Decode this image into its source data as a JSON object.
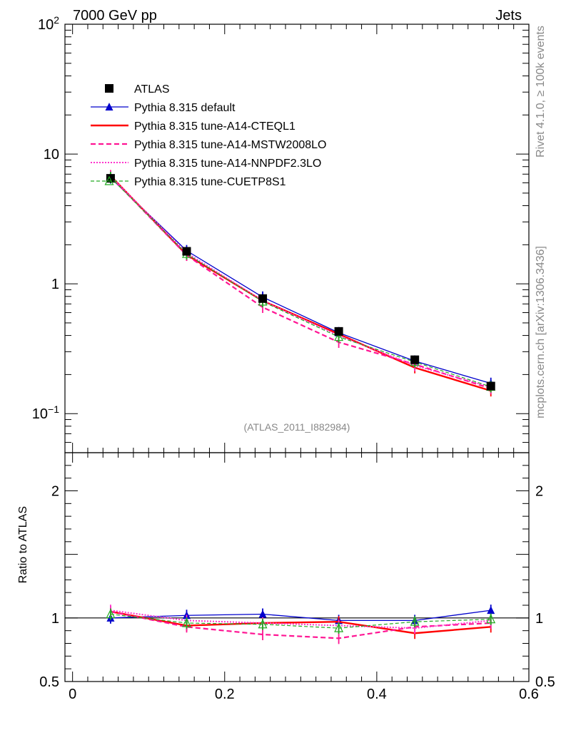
{
  "header": {
    "left": "7000 GeV pp",
    "right": "Jets"
  },
  "side_text": {
    "rivet": "Rivet 4.1.0, ≥ 100k events",
    "mcplots": "mcplots.cern.ch [arXiv:1306.3436]"
  },
  "analysis_tag": "(ATLAS_2011_I882984)",
  "ratio_ylabel": "Ratio to ATLAS",
  "colors": {
    "atlas": "#000000",
    "default": "#0000cc",
    "cteql1": "#ff0000",
    "mstw": "#ff1493",
    "nnpdf": "#ff33cc",
    "cuetp8s1": "#22aa22"
  },
  "chart_data": {
    "type": "line",
    "title": "7000 GeV pp — Jets",
    "main": {
      "yscale": "log",
      "ylim": [
        0.05,
        100
      ],
      "yticks": [
        {
          "value": 0.1,
          "base": "10",
          "exp": "−1"
        },
        {
          "value": 1,
          "base": "1",
          "exp": ""
        },
        {
          "value": 10,
          "base": "10",
          "exp": ""
        },
        {
          "value": 100,
          "base": "10",
          "exp": "2"
        }
      ]
    },
    "ratio": {
      "ylim": [
        0.5,
        2.3
      ],
      "ylabel": "Ratio to ATLAS",
      "yticks": [
        {
          "value": 0.5,
          "label": "0.5"
        },
        {
          "value": 1,
          "label": "1"
        },
        {
          "value": 2,
          "label": "2"
        }
      ]
    },
    "xlim": [
      -0.01,
      0.6
    ],
    "xticks": [
      {
        "value": 0,
        "label": "0"
      },
      {
        "value": 0.2,
        "label": "0.2"
      },
      {
        "value": 0.4,
        "label": "0.4"
      },
      {
        "value": 0.6,
        "label": "0.6"
      }
    ],
    "x": [
      0.05,
      0.15,
      0.25,
      0.35,
      0.45,
      0.55
    ],
    "series": [
      {
        "key": "atlas",
        "name": "ATLAS",
        "style": "data",
        "values": [
          6.5,
          1.78,
          0.77,
          0.43,
          0.26,
          0.163
        ],
        "ratio": [
          1,
          1,
          1,
          1,
          1,
          1
        ]
      },
      {
        "key": "default",
        "name": "Pythia 8.315 default",
        "style": "solid-thin",
        "values": [
          6.55,
          1.8,
          0.79,
          0.42,
          0.254,
          0.171
        ],
        "ratio": [
          1.0,
          1.02,
          1.03,
          0.98,
          0.98,
          1.06
        ]
      },
      {
        "key": "cteql1",
        "name": "Pythia 8.315 tune-A14-CTEQL1",
        "style": "solid-thick",
        "values": [
          6.8,
          1.67,
          0.74,
          0.41,
          0.226,
          0.15
        ],
        "ratio": [
          1.05,
          0.94,
          0.96,
          0.97,
          0.88,
          0.93
        ]
      },
      {
        "key": "mstw",
        "name": "Pythia 8.315 tune-A14-MSTW2008LO",
        "style": "dashed",
        "values": [
          6.7,
          1.66,
          0.66,
          0.355,
          0.24,
          0.156
        ],
        "ratio": [
          1.05,
          0.93,
          0.87,
          0.84,
          0.93,
          0.96
        ]
      },
      {
        "key": "nnpdf",
        "name": "Pythia 8.315 tune-A14-NNPDF2.3LO",
        "style": "dotted",
        "values": [
          6.75,
          1.73,
          0.74,
          0.4,
          0.235,
          0.16
        ],
        "ratio": [
          1.06,
          0.98,
          0.96,
          0.94,
          0.92,
          0.98
        ]
      },
      {
        "key": "cuetp8s1",
        "name": "Pythia 8.315 tune-CUETP8S1",
        "style": "dashed-thin",
        "values": [
          6.6,
          1.7,
          0.73,
          0.39,
          0.25,
          0.161
        ],
        "ratio": [
          1.03,
          0.96,
          0.95,
          0.92,
          0.97,
          0.99
        ]
      }
    ]
  }
}
